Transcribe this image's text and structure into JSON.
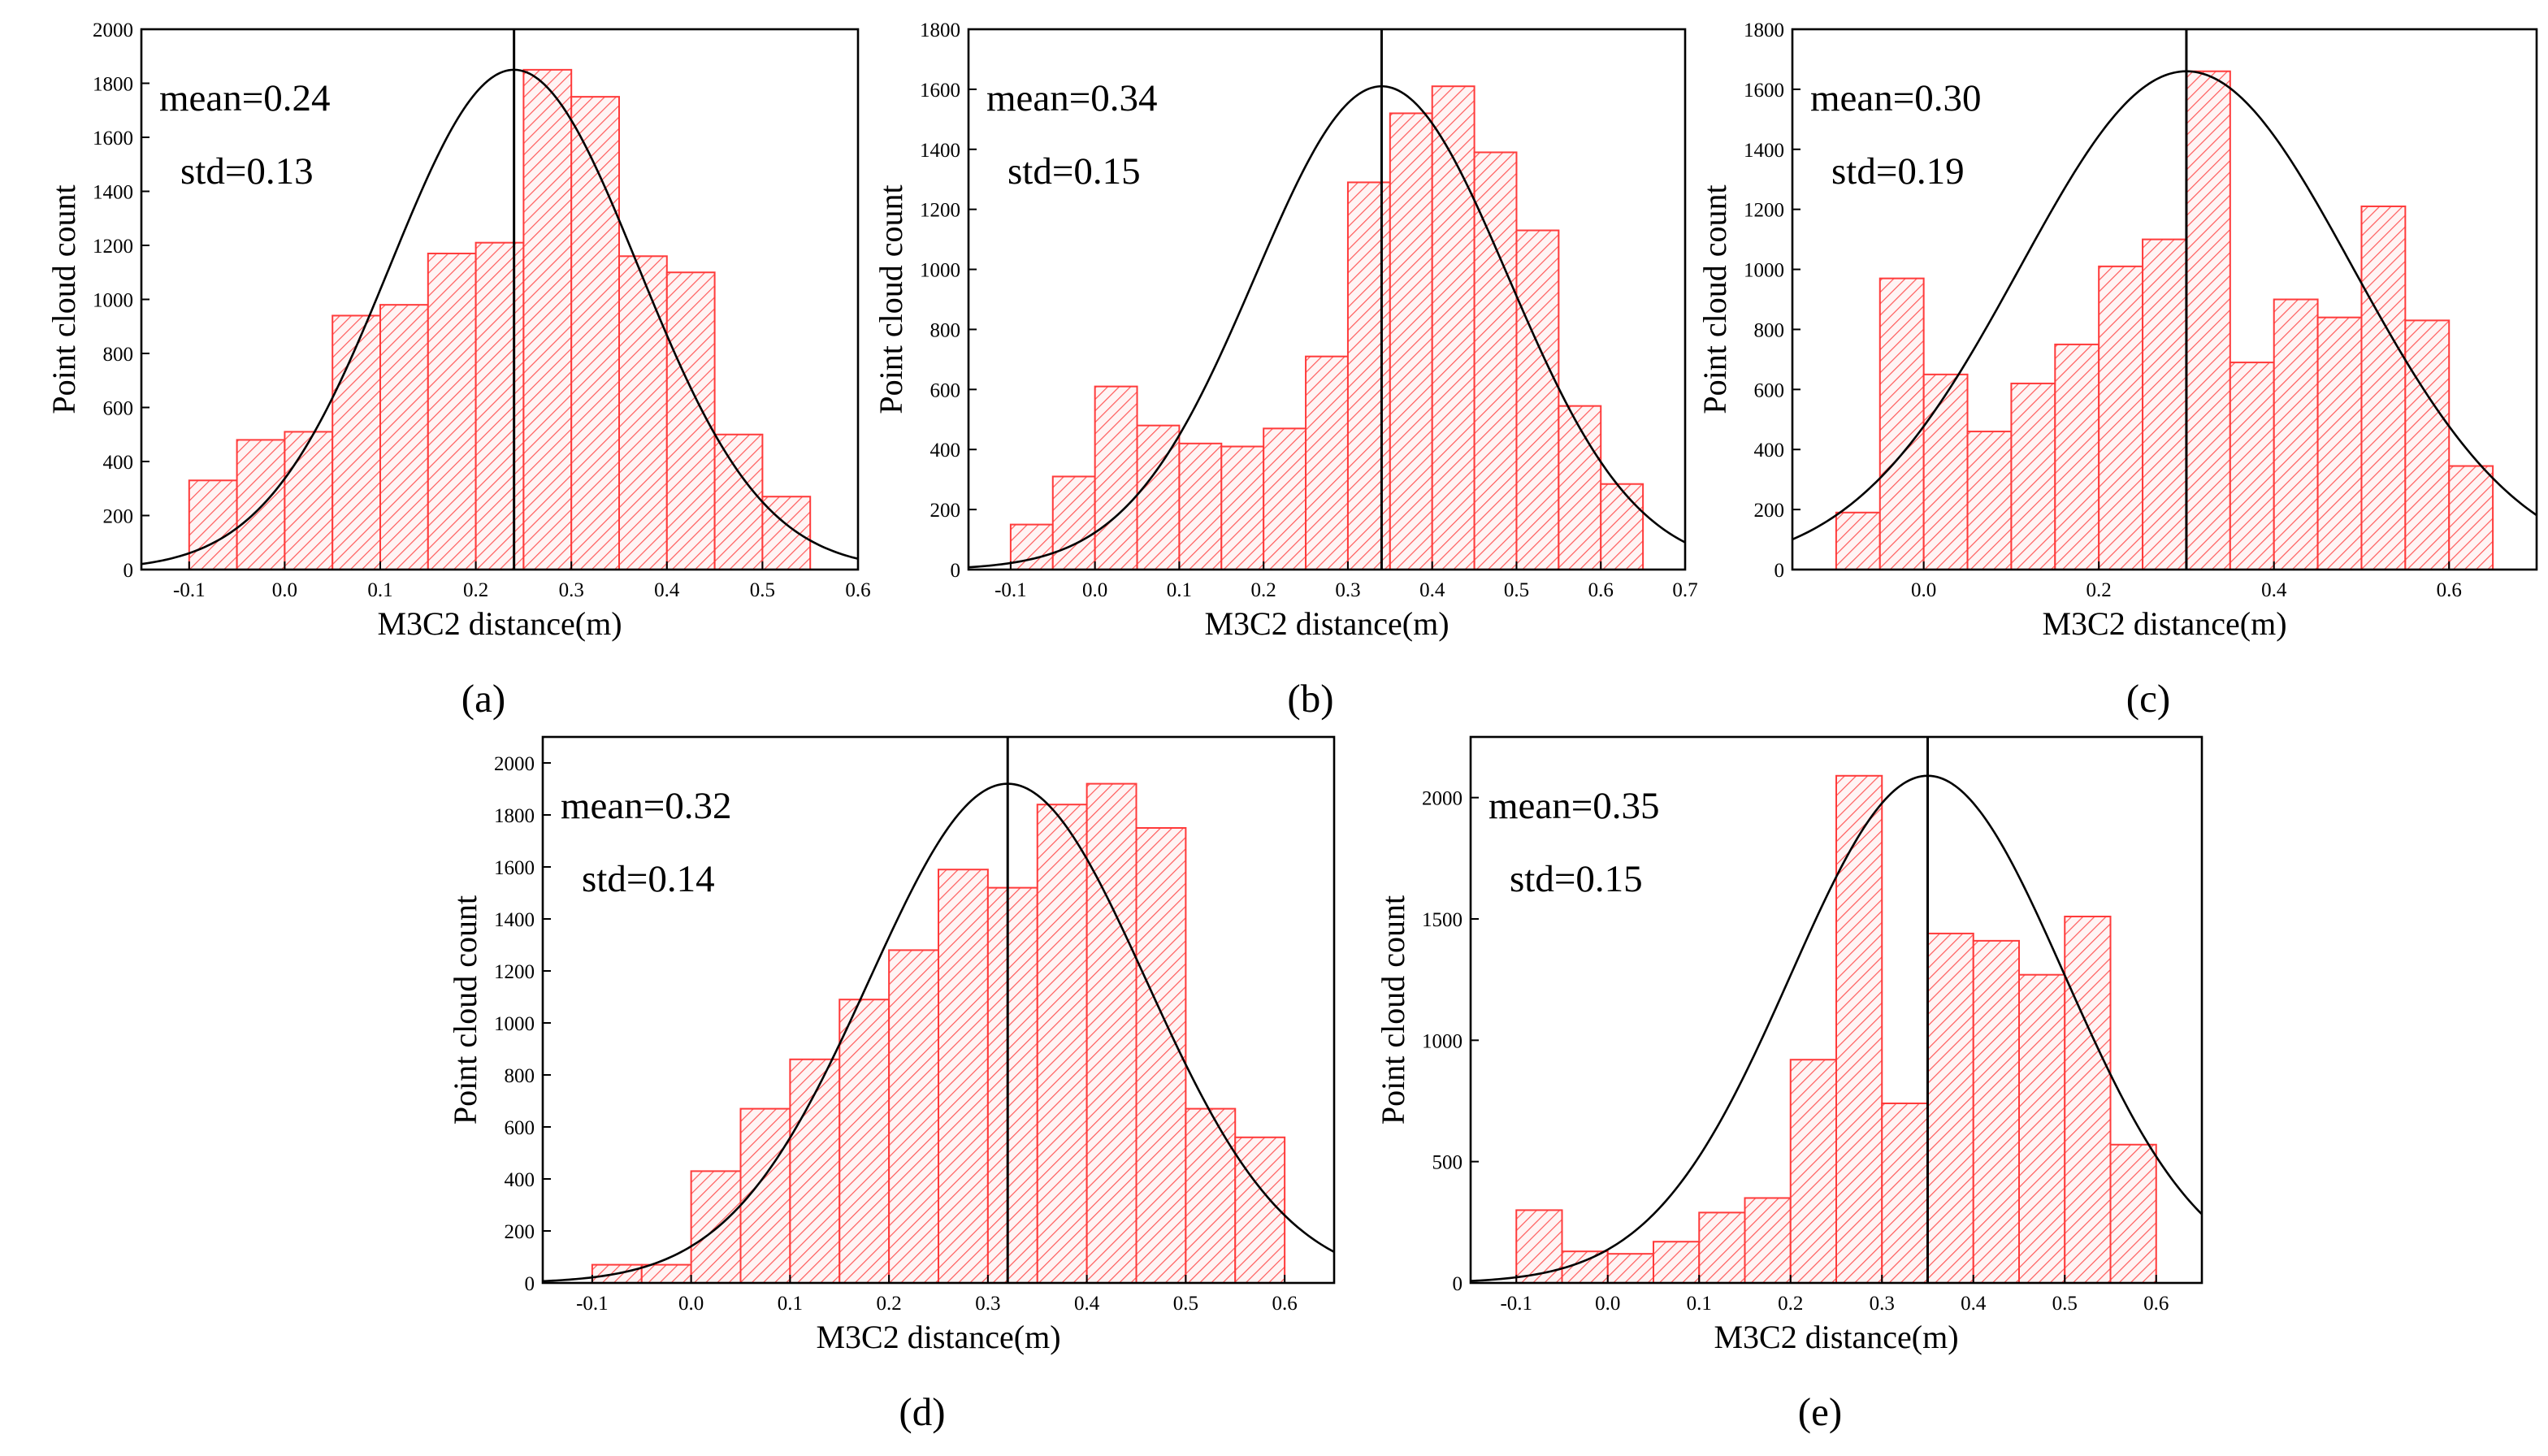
{
  "colors": {
    "bar_stroke": "#ff3b3b",
    "bar_fill": "#fff4f4",
    "hatch": "#ff5a5a",
    "curve": "#000000",
    "axis": "#000000"
  },
  "chart_data": [
    {
      "type": "bar",
      "panel_label": "(a)",
      "mean_text": "mean=0.24",
      "std_text": "std=0.13",
      "mean": 0.24,
      "std": 0.13,
      "curve_peak": 1850,
      "xlabel": "M3C2 distance(m)",
      "ylabel": "Point cloud count",
      "xlim": [
        -0.15,
        0.6
      ],
      "ylim": [
        0,
        2000
      ],
      "xticks": [
        -0.1,
        0.0,
        0.1,
        0.2,
        0.3,
        0.4,
        0.5,
        0.6
      ],
      "xtick_labels": [
        "-0.1",
        "0.0",
        "0.1",
        "0.2",
        "0.3",
        "0.4",
        "0.5",
        "0.6"
      ],
      "yticks": [
        0,
        200,
        400,
        600,
        800,
        1000,
        1200,
        1400,
        1600,
        1800,
        2000
      ],
      "ytick_labels": [
        "0",
        "200",
        "400",
        "600",
        "800",
        "1000",
        "1200",
        "1400",
        "1600",
        "1800",
        "2000"
      ],
      "bin_width": 0.05,
      "bin_starts": [
        -0.1,
        -0.05,
        0.0,
        0.05,
        0.1,
        0.15,
        0.2,
        0.25,
        0.3,
        0.35,
        0.4,
        0.45,
        0.5
      ],
      "values": [
        330,
        480,
        510,
        940,
        980,
        1170,
        1210,
        1850,
        1750,
        1160,
        1100,
        500,
        270
      ]
    },
    {
      "type": "bar",
      "panel_label": "(b)",
      "mean_text": "mean=0.34",
      "std_text": "std=0.15",
      "mean": 0.34,
      "std": 0.15,
      "curve_peak": 1610,
      "xlabel": "M3C2 distance(m)",
      "ylabel": "Point cloud count",
      "xlim": [
        -0.15,
        0.7
      ],
      "ylim": [
        0,
        1800
      ],
      "xticks": [
        -0.1,
        0.0,
        0.1,
        0.2,
        0.3,
        0.4,
        0.5,
        0.6,
        0.7
      ],
      "xtick_labels": [
        "-0.1",
        "0.0",
        "0.1",
        "0.2",
        "0.3",
        "0.4",
        "0.5",
        "0.6",
        "0.7"
      ],
      "yticks": [
        0,
        200,
        400,
        600,
        800,
        1000,
        1200,
        1400,
        1600,
        1800
      ],
      "ytick_labels": [
        "0",
        "200",
        "400",
        "600",
        "800",
        "1000",
        "1200",
        "1400",
        "1600",
        "1800"
      ],
      "bin_width": 0.05,
      "bin_starts": [
        -0.1,
        -0.05,
        0.0,
        0.05,
        0.1,
        0.15,
        0.2,
        0.25,
        0.3,
        0.35,
        0.4,
        0.45,
        0.5,
        0.55,
        0.6
      ],
      "values": [
        150,
        310,
        610,
        480,
        420,
        410,
        470,
        710,
        1290,
        1520,
        1610,
        1390,
        1130,
        545,
        285
      ]
    },
    {
      "type": "bar",
      "panel_label": "(c)",
      "mean_text": "mean=0.30",
      "std_text": "std=0.19",
      "mean": 0.3,
      "std": 0.19,
      "curve_peak": 1660,
      "xlabel": "M3C2 distance(m)",
      "ylabel": "Point cloud count",
      "xlim": [
        -0.15,
        0.7
      ],
      "ylim": [
        0,
        1800
      ],
      "xticks": [
        0.0,
        0.2,
        0.4,
        0.6
      ],
      "xtick_labels": [
        "0.0",
        "0.2",
        "0.4",
        "0.6"
      ],
      "yticks": [
        0,
        200,
        400,
        600,
        800,
        1000,
        1200,
        1400,
        1600,
        1800
      ],
      "ytick_labels": [
        "0",
        "200",
        "400",
        "600",
        "800",
        "1000",
        "1200",
        "1400",
        "1600",
        "1800"
      ],
      "bin_width": 0.05,
      "bin_starts": [
        -0.1,
        -0.05,
        0.0,
        0.05,
        0.1,
        0.15,
        0.2,
        0.25,
        0.3,
        0.35,
        0.4,
        0.45,
        0.5,
        0.55,
        0.6
      ],
      "values": [
        190,
        970,
        650,
        460,
        620,
        750,
        1010,
        1100,
        1660,
        690,
        900,
        840,
        1210,
        830,
        345
      ]
    },
    {
      "type": "bar",
      "panel_label": "(d)",
      "mean_text": "mean=0.32",
      "std_text": "std=0.14",
      "mean": 0.32,
      "std": 0.14,
      "curve_peak": 1920,
      "xlabel": "M3C2 distance(m)",
      "ylabel": "Point cloud count",
      "xlim": [
        -0.15,
        0.65
      ],
      "ylim": [
        0,
        2100
      ],
      "xticks": [
        -0.1,
        0.0,
        0.1,
        0.2,
        0.3,
        0.4,
        0.5,
        0.6
      ],
      "xtick_labels": [
        "-0.1",
        "0.0",
        "0.1",
        "0.2",
        "0.3",
        "0.4",
        "0.5",
        "0.6"
      ],
      "yticks": [
        0,
        200,
        400,
        600,
        800,
        1000,
        1200,
        1400,
        1600,
        1800,
        2000
      ],
      "ytick_labels": [
        "0",
        "200",
        "400",
        "600",
        "800",
        "1000",
        "1200",
        "1400",
        "1600",
        "1800",
        "2000"
      ],
      "bin_width": 0.05,
      "bin_starts": [
        -0.1,
        -0.05,
        0.0,
        0.05,
        0.1,
        0.15,
        0.2,
        0.25,
        0.3,
        0.35,
        0.4,
        0.45,
        0.5,
        0.55
      ],
      "values": [
        70,
        70,
        430,
        670,
        860,
        1090,
        1280,
        1590,
        1520,
        1840,
        1920,
        1750,
        670,
        560
      ]
    },
    {
      "type": "bar",
      "panel_label": "(e)",
      "mean_text": "mean=0.35",
      "std_text": "std=0.15",
      "mean": 0.35,
      "std": 0.15,
      "curve_peak": 2090,
      "xlabel": "M3C2 distance(m)",
      "ylabel": "Point cloud count",
      "xlim": [
        -0.15,
        0.65
      ],
      "ylim": [
        0,
        2250
      ],
      "xticks": [
        -0.1,
        0.0,
        0.1,
        0.2,
        0.3,
        0.4,
        0.5,
        0.6
      ],
      "xtick_labels": [
        "-0.1",
        "0.0",
        "0.1",
        "0.2",
        "0.3",
        "0.4",
        "0.5",
        "0.6"
      ],
      "yticks": [
        0,
        500,
        1000,
        1500,
        2000
      ],
      "ytick_labels": [
        "0",
        "500",
        "1000",
        "1500",
        "2000"
      ],
      "bin_width": 0.05,
      "bin_starts": [
        -0.1,
        -0.05,
        0.0,
        0.05,
        0.1,
        0.15,
        0.2,
        0.25,
        0.3,
        0.35,
        0.4,
        0.45,
        0.5,
        0.55
      ],
      "values": [
        300,
        130,
        120,
        170,
        290,
        350,
        920,
        2090,
        740,
        1440,
        1410,
        1270,
        1510,
        570
      ]
    }
  ]
}
